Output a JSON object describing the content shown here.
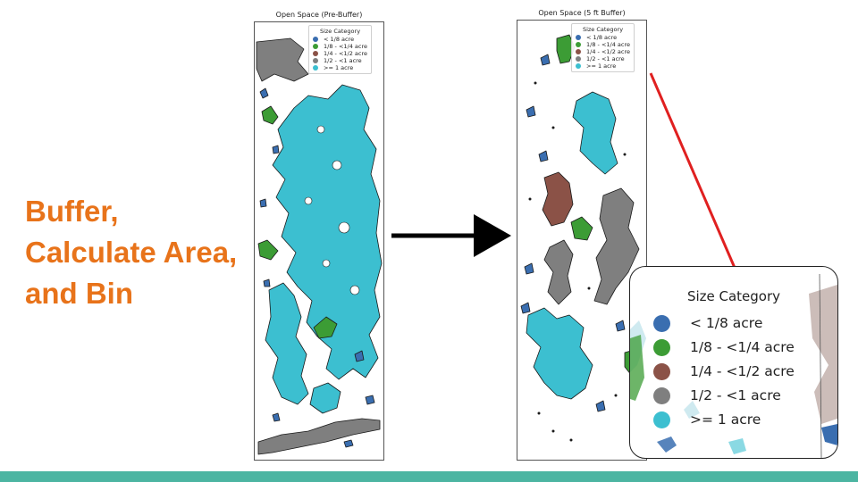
{
  "heading": {
    "line1": "Buffer,",
    "line2": "Calculate Area,",
    "line3": "and Bin"
  },
  "map_left": {
    "title": "Open Space (Pre-Buffer)"
  },
  "map_right": {
    "title": "Open Space (5 ft Buffer)"
  },
  "legend": {
    "title": "Size Category",
    "items": [
      {
        "label": "< 1/8 acre",
        "color": "#3a6eb0"
      },
      {
        "label": "1/8 - <1/4 acre",
        "color": "#3c9c35"
      },
      {
        "label": "1/4 - <1/2 acre",
        "color": "#8b5247"
      },
      {
        "label": "1/2 - <1 acre",
        "color": "#7f7f7f"
      },
      {
        "label": ">= 1 acre",
        "color": "#3cbfd0"
      }
    ]
  },
  "colors": {
    "heading": "#e8731a",
    "bottom_bar": "#4cb5a2",
    "callout_line": "#e02020",
    "arrow": "#000000"
  }
}
